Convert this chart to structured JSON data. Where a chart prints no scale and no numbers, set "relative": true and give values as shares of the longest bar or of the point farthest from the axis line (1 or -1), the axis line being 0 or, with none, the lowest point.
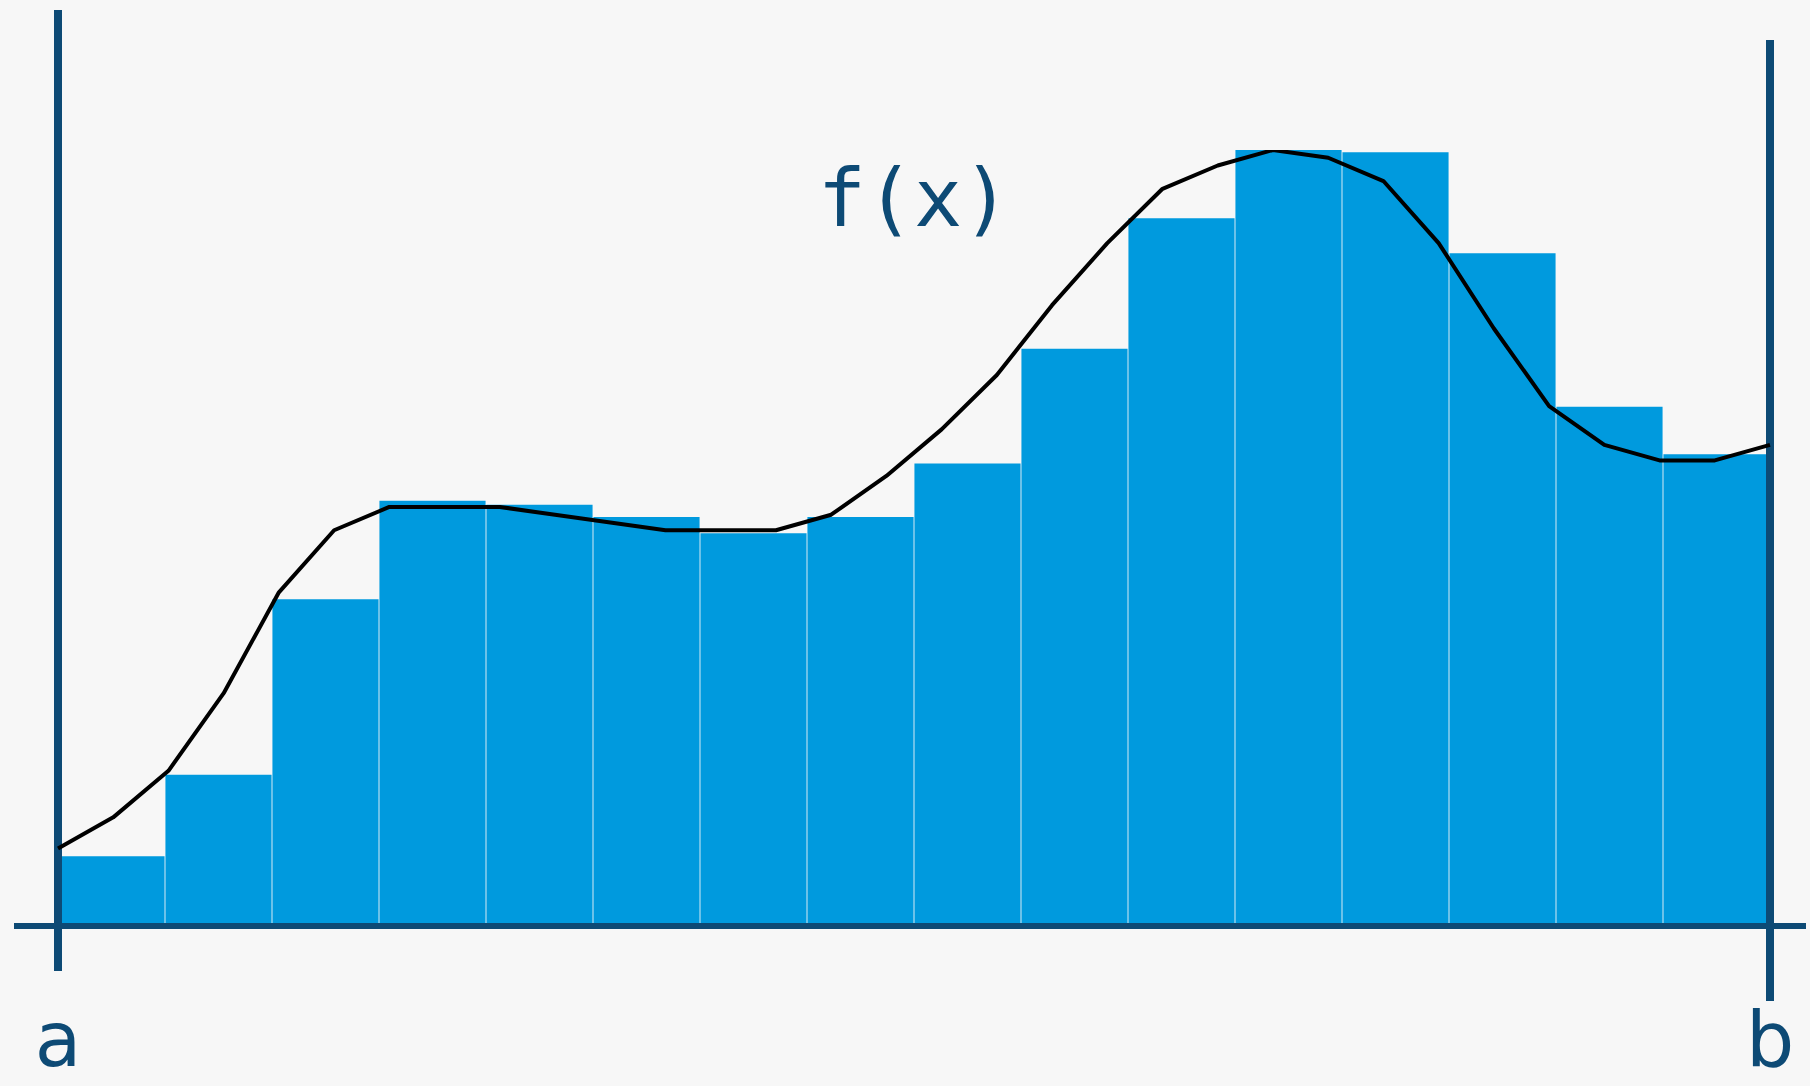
{
  "chart_data": [
    {
      "type": "bar",
      "relative": true,
      "grid": false,
      "legend": false,
      "categories": [
        null,
        null,
        null,
        null,
        null,
        null,
        null,
        null,
        null,
        null,
        null,
        null,
        null,
        null,
        null,
        null
      ],
      "series": [
        {
          "color": "#009ade",
          "values": [
            0.09,
            0.195,
            0.421,
            0.548,
            0.543,
            0.527,
            0.506,
            0.527,
            0.596,
            0.744,
            0.912,
            1,
            0.997,
            0.867,
            0.669,
            0.608
          ]
        }
      ],
      "annotations": [
        "a",
        "b"
      ]
    },
    {
      "type": "line",
      "relative": true,
      "grid": false,
      "legend": false,
      "categories": [
        null,
        null,
        null,
        null,
        null,
        null,
        null,
        null,
        null,
        null,
        null,
        null,
        null,
        null,
        null,
        null,
        null,
        null,
        null,
        null,
        null,
        null,
        null,
        null,
        null,
        null,
        null,
        null,
        null,
        null,
        null,
        null
      ],
      "series": [
        {
          "color": "#000000",
          "values": [
            0.1,
            0.14,
            0.2,
            0.3,
            0.43,
            0.51,
            0.54,
            0.54,
            0.54,
            0.53,
            0.52,
            0.51,
            0.51,
            0.51,
            0.53,
            0.58,
            0.64,
            0.71,
            0.8,
            0.88,
            0.95,
            0.98,
            1,
            0.99,
            0.96,
            0.88,
            0.77,
            0.67,
            0.62,
            0.6,
            0.6,
            0.62
          ]
        }
      ],
      "annotations": [
        "f(x)"
      ]
    }
  ]
}
